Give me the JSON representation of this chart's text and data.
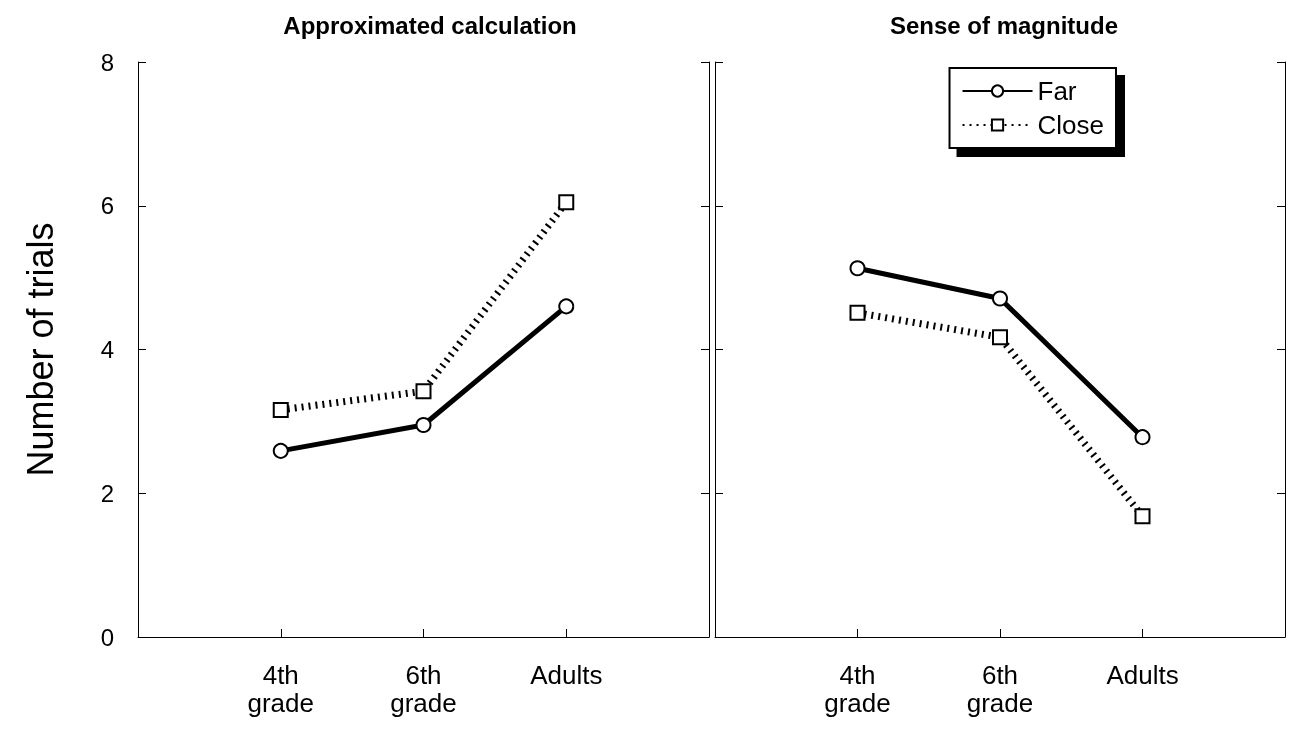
{
  "chart_data": [
    {
      "type": "line",
      "title": "Approximated calculation",
      "ylabel": "Number of trials",
      "categories": [
        "4th grade",
        "6th grade",
        "Adults"
      ],
      "ylim": [
        0,
        8
      ],
      "yticks": [
        0,
        2,
        4,
        6,
        8
      ],
      "grid": false,
      "series": [
        {
          "color": "#000000",
          "values": [
            2.59,
            2.95,
            4.6
          ],
          "marker": "circle",
          "line_style": "solid"
        },
        {
          "color": "#000000",
          "values": [
            3.16,
            3.42,
            6.05
          ],
          "marker": "square",
          "line_style": "dotted"
        }
      ]
    },
    {
      "type": "line",
      "title": "Sense of magnitude",
      "categories": [
        "4th grade",
        "6th grade",
        "Adults"
      ],
      "ylim": [
        0,
        8
      ],
      "yticks": [
        0,
        2,
        4,
        6,
        8
      ],
      "grid": false,
      "tick_labels": "x",
      "legend": "top right",
      "series": [
        {
          "name": "Far",
          "color": "#000000",
          "values": [
            5.13,
            4.71,
            2.78
          ],
          "marker": "circle",
          "line_style": "solid"
        },
        {
          "name": "Close",
          "color": "#000000",
          "values": [
            4.51,
            4.17,
            1.68
          ],
          "marker": "square",
          "line_style": "dotted"
        }
      ]
    }
  ]
}
